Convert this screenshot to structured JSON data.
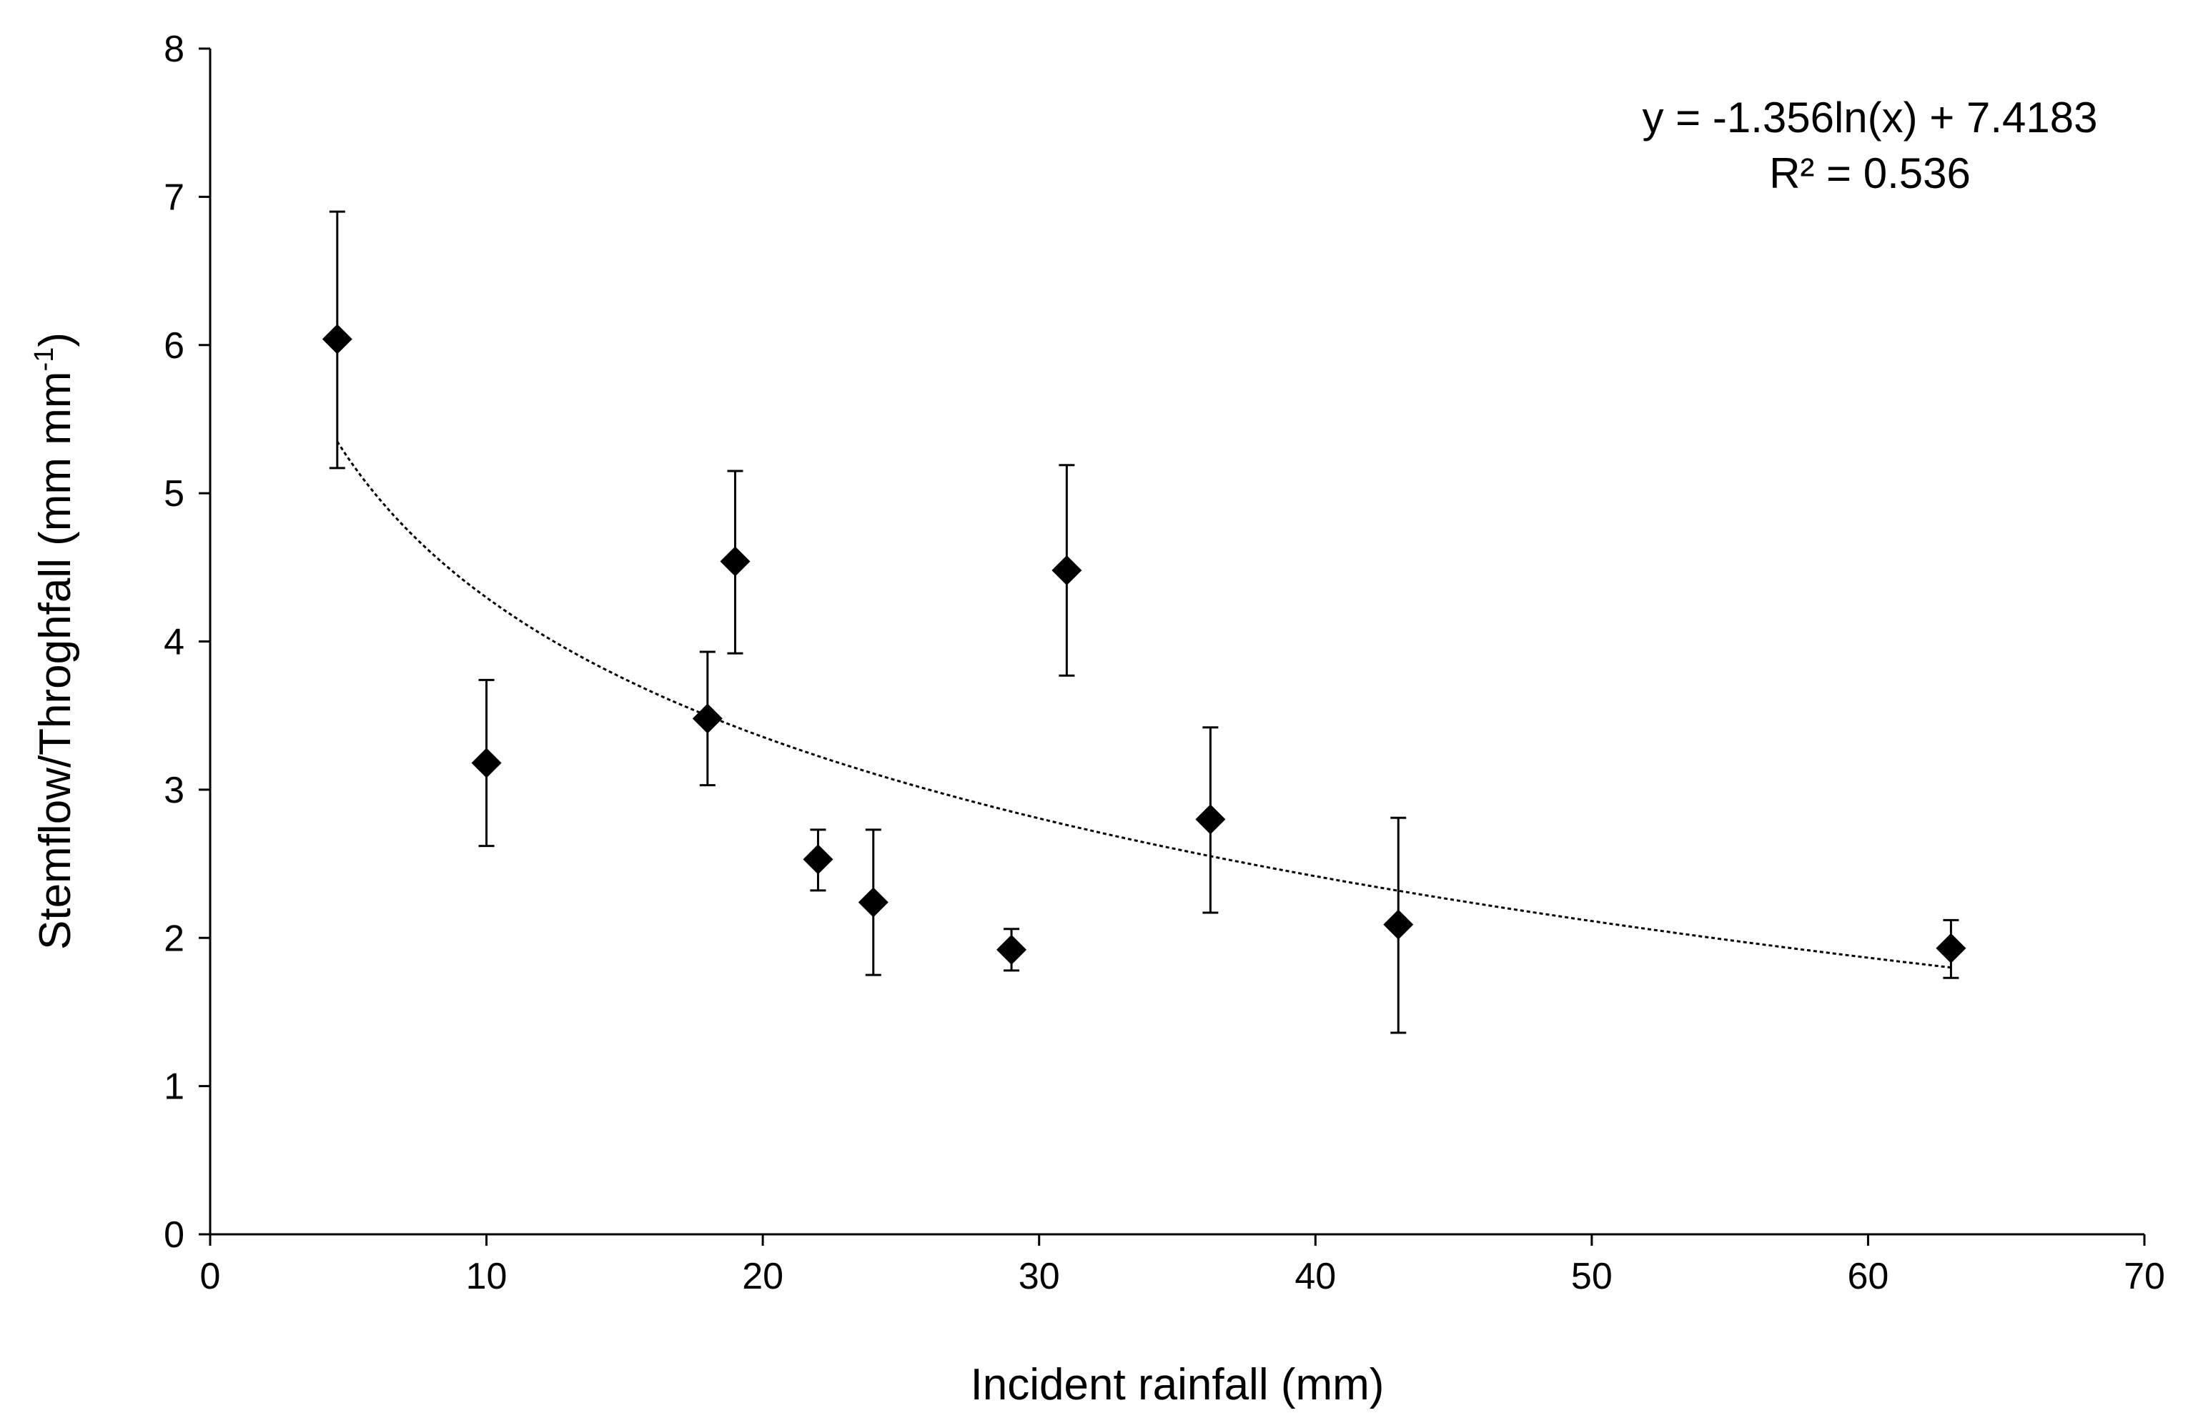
{
  "chart_data": {
    "type": "scatter",
    "title": "",
    "xlabel": "Incident rainfall (mm)",
    "ylabel": "Stemflow/Throghfall (mm mm",
    "ylabel_sup": "-1",
    "ylabel_end": ")",
    "xlim": [
      0,
      70
    ],
    "ylim": [
      0,
      8
    ],
    "x_ticks": [
      0,
      10,
      20,
      30,
      40,
      50,
      60,
      70
    ],
    "y_ticks": [
      0,
      1,
      2,
      3,
      4,
      5,
      6,
      7,
      8
    ],
    "grid": false,
    "marker": "diamond",
    "series": [
      {
        "name": "Stemflow/Throughfall",
        "points": [
          {
            "x": 4.6,
            "y": 6.04,
            "err_low": 5.17,
            "err_high": 6.9
          },
          {
            "x": 10.0,
            "y": 3.18,
            "err_low": 2.62,
            "err_high": 3.74
          },
          {
            "x": 18.0,
            "y": 3.48,
            "err_low": 3.03,
            "err_high": 3.93
          },
          {
            "x": 19.0,
            "y": 4.54,
            "err_low": 3.92,
            "err_high": 5.15
          },
          {
            "x": 22.0,
            "y": 2.53,
            "err_low": 2.32,
            "err_high": 2.73
          },
          {
            "x": 24.0,
            "y": 2.24,
            "err_low": 1.75,
            "err_high": 2.73
          },
          {
            "x": 29.0,
            "y": 1.92,
            "err_low": 1.78,
            "err_high": 2.06
          },
          {
            "x": 31.0,
            "y": 4.48,
            "err_low": 3.77,
            "err_high": 5.19
          },
          {
            "x": 36.2,
            "y": 2.8,
            "err_low": 2.17,
            "err_high": 3.42
          },
          {
            "x": 43.0,
            "y": 2.09,
            "err_low": 1.36,
            "err_high": 2.81
          },
          {
            "x": 63.0,
            "y": 1.93,
            "err_low": 1.73,
            "err_high": 2.12
          }
        ]
      }
    ],
    "trendline": {
      "type": "logarithmic",
      "a": -1.356,
      "b": 7.4183,
      "x_start": 4.6,
      "x_end": 63.0,
      "style": "dotted"
    },
    "annotations": {
      "equation": "y = -1.356ln(x) + 7.4183",
      "r_squared": "R² = 0.536"
    },
    "legend": "none"
  }
}
